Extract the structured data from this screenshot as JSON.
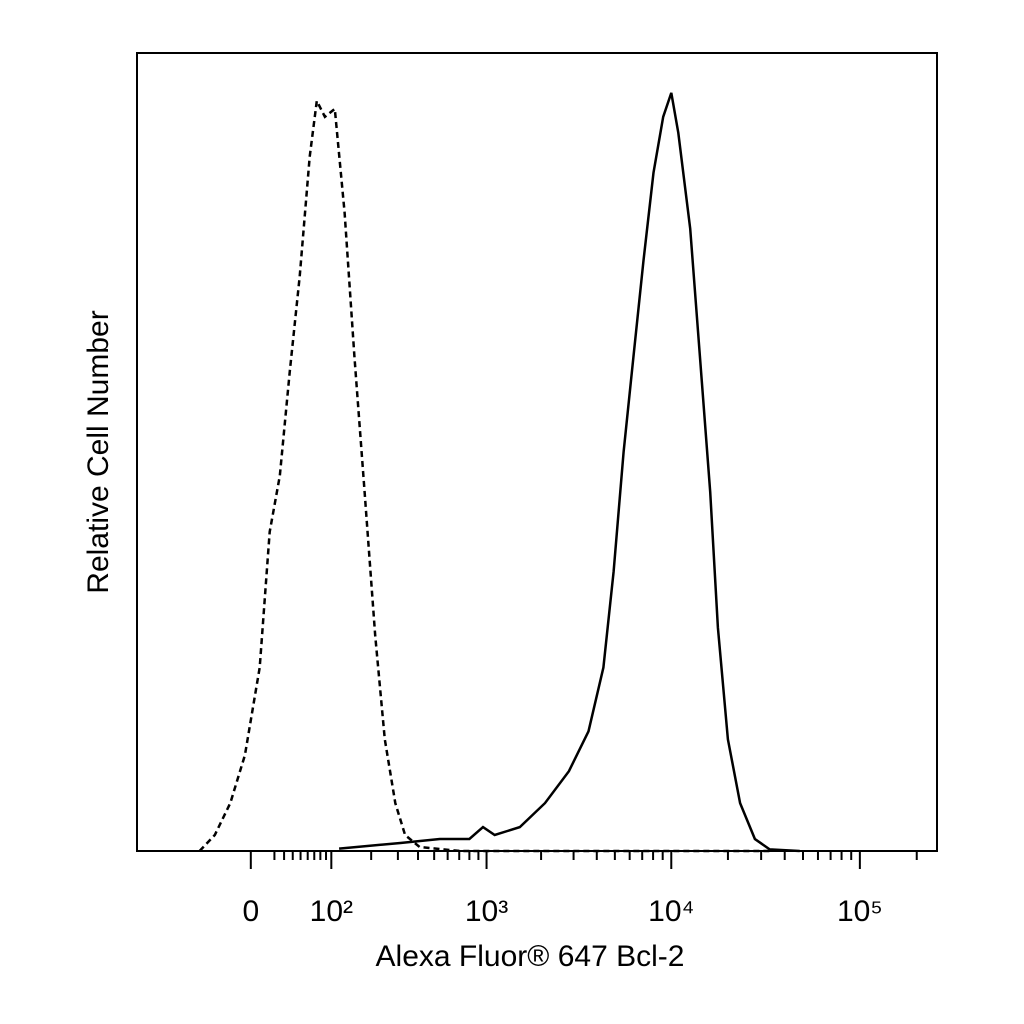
{
  "chart_data": {
    "type": "line",
    "x_label": "Alexa Fluor® 647 Bcl-2",
    "y_label": "Relative Cell Number",
    "xscale": "biexponential",
    "xlim": [
      -180,
      256000
    ],
    "ylim": [
      0,
      100
    ],
    "xticks": [
      0,
      {
        "value": 100,
        "label": "10²"
      },
      {
        "value": 1000,
        "label": "10³"
      },
      {
        "value": 10000,
        "label": "10⁴"
      },
      {
        "value": 100000,
        "label": "10⁵"
      }
    ],
    "xminorticks": [
      20,
      30,
      40,
      50,
      60,
      70,
      80,
      90,
      200,
      300,
      400,
      500,
      600,
      700,
      800,
      900,
      2000,
      3000,
      4000,
      5000,
      6000,
      7000,
      8000,
      9000,
      20000,
      30000,
      40000,
      50000,
      60000,
      70000,
      80000,
      90000,
      200000
    ],
    "series": [
      {
        "color": "#000000",
        "style": "dashed",
        "x": [
          -52,
          -33,
          -17,
          -4.5,
          6.9,
          15.5,
          25.4,
          36.4,
          48.9,
          63,
          74,
          88,
          107,
          128,
          152,
          180,
          213,
          247,
          289,
          333,
          409,
          708,
          2477,
          14200,
          33300
        ],
        "values": [
          0,
          2,
          6,
          12,
          23,
          40,
          47,
          60,
          72,
          87,
          94,
          92,
          93,
          80,
          62,
          45,
          27,
          14,
          6,
          2,
          0.5,
          0,
          0,
          0,
          0
        ]
      },
      {
        "color": "#000000",
        "style": "solid",
        "x": [
          116,
          311,
          540,
          800,
          955,
          1110,
          1530,
          2100,
          2830,
          3610,
          4340,
          4920,
          5570,
          6290,
          7110,
          8040,
          9060,
          10000,
          10900,
          12600,
          14200,
          16100,
          17700,
          20000,
          23200,
          27800,
          33300,
          48000
        ],
        "values": [
          0.3,
          1,
          1.5,
          1.5,
          3,
          2,
          3,
          6,
          10,
          15,
          23,
          35,
          50,
          62,
          74,
          85,
          92,
          95,
          90,
          78,
          62,
          45,
          28,
          14,
          6,
          1.5,
          0.2,
          0
        ]
      }
    ]
  }
}
